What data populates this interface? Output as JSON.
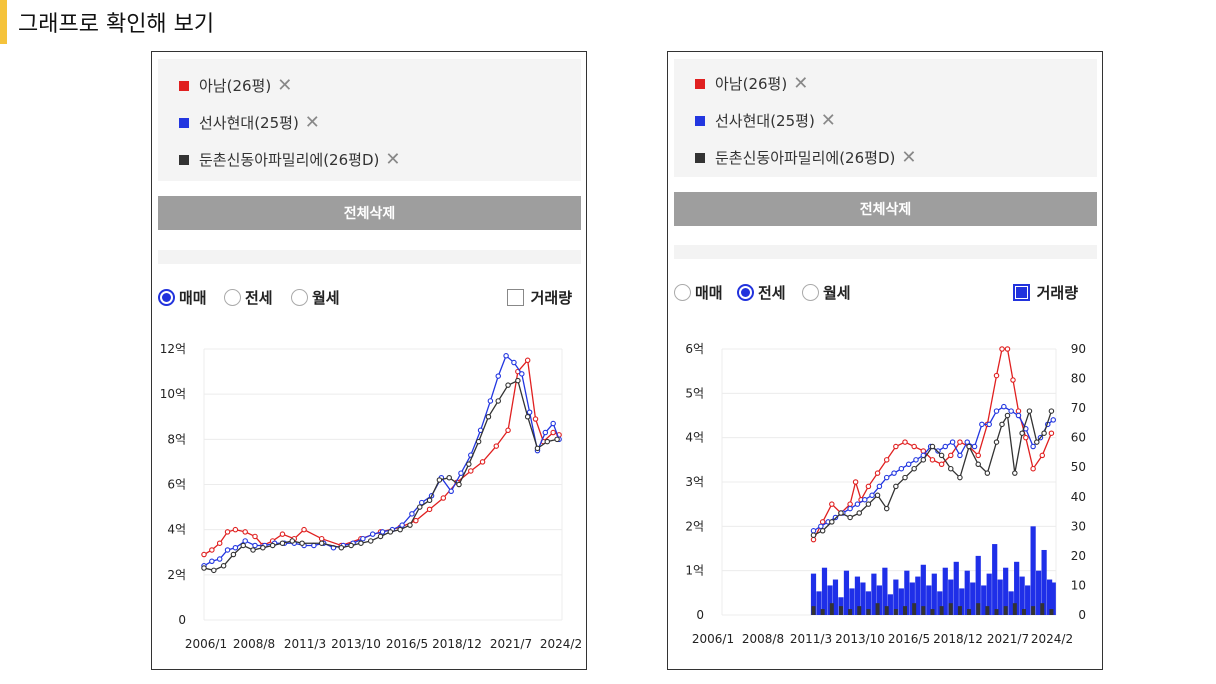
{
  "page_title": "그래프로 확인해 보기",
  "colors": {
    "red": "#e02020",
    "blue": "#2236e0",
    "black": "#333333",
    "accent": "#f5c33b",
    "button_bg": "#9e9e9e"
  },
  "panels": [
    {
      "selected": [
        {
          "label": "아남(26평)",
          "color": "#e02020",
          "remove": "✕"
        },
        {
          "label": "선사현대(25평)",
          "color": "#2236e0",
          "remove": "✕"
        },
        {
          "label": "둔촌신동아파밀리에(26평D)",
          "color": "#333333",
          "remove": "✕"
        }
      ],
      "clear_label": "전체삭제",
      "radios": [
        {
          "label": "매매",
          "checked": true
        },
        {
          "label": "전세",
          "checked": false
        },
        {
          "label": "월세",
          "checked": false
        }
      ],
      "volume": {
        "label": "거래량",
        "checked": false
      }
    },
    {
      "selected": [
        {
          "label": "아남(26평)",
          "color": "#e02020",
          "remove": "✕"
        },
        {
          "label": "선사현대(25평)",
          "color": "#2236e0",
          "remove": "✕"
        },
        {
          "label": "둔촌신동아파밀리에(26평D)",
          "color": "#333333",
          "remove": "✕"
        }
      ],
      "clear_label": "전체삭제",
      "radios": [
        {
          "label": "매매",
          "checked": false
        },
        {
          "label": "전세",
          "checked": true
        },
        {
          "label": "월세",
          "checked": false
        }
      ],
      "volume": {
        "label": "거래량",
        "checked": true
      }
    }
  ],
  "chart_data": [
    {
      "type": "line",
      "mode": "매매",
      "x_ticks": [
        "2006/1",
        "2008/8",
        "2011/3",
        "2013/10",
        "2016/5",
        "2018/12",
        "2021/7",
        "2024/2"
      ],
      "y_ticks": [
        "0",
        "2억",
        "4억",
        "6억",
        "8억",
        "10억",
        "12억"
      ],
      "ylim": [
        0,
        12
      ],
      "x_range": [
        2006.0,
        2024.25
      ],
      "grid": true,
      "series": [
        {
          "name": "아남(26평)",
          "color": "#e02020",
          "x": [
            2006.0,
            2006.4,
            2006.8,
            2007.2,
            2007.6,
            2008.1,
            2008.6,
            2009.0,
            2009.5,
            2010.0,
            2010.6,
            2011.1,
            2012.0,
            2013.0,
            2014.0,
            2015.0,
            2016.0,
            2016.8,
            2017.5,
            2018.2,
            2018.9,
            2019.6,
            2020.2,
            2020.9,
            2021.5,
            2022.0,
            2022.5,
            2022.9,
            2023.3,
            2023.8,
            2024.1
          ],
          "y": [
            2.9,
            3.1,
            3.4,
            3.9,
            4.0,
            3.9,
            3.7,
            3.3,
            3.5,
            3.8,
            3.6,
            4.0,
            3.6,
            3.3,
            3.6,
            3.9,
            4.1,
            4.4,
            4.9,
            5.4,
            6.1,
            6.6,
            7.0,
            7.7,
            8.4,
            11.0,
            11.5,
            8.9,
            7.9,
            8.3,
            8.2
          ]
        },
        {
          "name": "선사현대(25평)",
          "color": "#2236e0",
          "x": [
            2006.0,
            2006.4,
            2006.8,
            2007.2,
            2007.6,
            2008.1,
            2008.6,
            2009.1,
            2009.6,
            2010.1,
            2010.6,
            2011.1,
            2011.6,
            2012.1,
            2012.6,
            2013.1,
            2013.6,
            2014.1,
            2014.6,
            2015.1,
            2015.6,
            2016.1,
            2016.6,
            2017.1,
            2017.6,
            2018.1,
            2018.6,
            2019.1,
            2019.6,
            2020.1,
            2020.6,
            2021.0,
            2021.4,
            2021.8,
            2022.2,
            2022.6,
            2023.0,
            2023.4,
            2023.8,
            2024.1
          ],
          "y": [
            2.4,
            2.6,
            2.7,
            3.1,
            3.2,
            3.5,
            3.3,
            3.3,
            3.4,
            3.4,
            3.4,
            3.3,
            3.3,
            3.4,
            3.2,
            3.3,
            3.4,
            3.6,
            3.8,
            3.9,
            4.0,
            4.2,
            4.7,
            5.2,
            5.5,
            6.3,
            5.7,
            6.5,
            7.3,
            8.4,
            9.7,
            10.8,
            11.7,
            11.4,
            10.9,
            9.2,
            7.5,
            8.3,
            8.7,
            8.0
          ]
        },
        {
          "name": "둔촌신동아파밀리에(26평D)",
          "color": "#333333",
          "x": [
            2006.0,
            2006.5,
            2007.0,
            2007.5,
            2008.0,
            2008.5,
            2009.0,
            2009.5,
            2010.0,
            2010.5,
            2011.0,
            2012.0,
            2013.0,
            2013.5,
            2014.0,
            2014.5,
            2015.0,
            2015.5,
            2016.0,
            2016.5,
            2017.0,
            2017.5,
            2018.0,
            2018.5,
            2019.0,
            2019.5,
            2020.0,
            2020.5,
            2021.0,
            2021.5,
            2022.0,
            2022.5,
            2023.0,
            2023.5,
            2024.0
          ],
          "y": [
            2.3,
            2.2,
            2.4,
            2.9,
            3.3,
            3.1,
            3.2,
            3.3,
            3.4,
            3.5,
            3.4,
            3.4,
            3.2,
            3.3,
            3.4,
            3.5,
            3.7,
            3.9,
            4.0,
            4.2,
            5.0,
            5.3,
            6.2,
            6.3,
            6.0,
            6.9,
            7.9,
            9.0,
            9.7,
            10.4,
            10.6,
            9.0,
            7.6,
            7.9,
            8.0
          ]
        }
      ]
    },
    {
      "type": "line",
      "mode": "전세",
      "x_ticks": [
        "2006/1",
        "2008/8",
        "2011/3",
        "2013/10",
        "2016/5",
        "2018/12",
        "2021/7",
        "2024/2"
      ],
      "y_ticks": [
        "0",
        "1억",
        "2억",
        "3억",
        "4억",
        "5억",
        "6억"
      ],
      "y2_ticks": [
        "0",
        "10",
        "20",
        "30",
        "40",
        "50",
        "60",
        "70",
        "80",
        "90"
      ],
      "ylim": [
        0,
        6
      ],
      "y2lim": [
        0,
        90
      ],
      "x_range": [
        2006.0,
        2024.25
      ],
      "grid": true,
      "series": [
        {
          "name": "아남(26평)",
          "color": "#e02020",
          "x": [
            2011.0,
            2011.5,
            2012.0,
            2012.5,
            2013.0,
            2013.3,
            2013.6,
            2014.0,
            2014.5,
            2015.0,
            2015.5,
            2016.0,
            2016.5,
            2017.0,
            2017.5,
            2018.0,
            2018.5,
            2019.0,
            2019.5,
            2020.0,
            2020.5,
            2021.0,
            2021.3,
            2021.6,
            2021.9,
            2022.2,
            2022.6,
            2023.0,
            2023.5,
            2024.0
          ],
          "y": [
            1.7,
            2.1,
            2.5,
            2.3,
            2.5,
            3.0,
            2.6,
            2.9,
            3.2,
            3.5,
            3.8,
            3.9,
            3.8,
            3.7,
            3.5,
            3.4,
            3.6,
            3.9,
            3.8,
            3.6,
            4.3,
            5.4,
            6.0,
            6.0,
            5.3,
            4.6,
            4.0,
            3.3,
            3.6,
            4.1
          ]
        },
        {
          "name": "선사현대(25평)",
          "color": "#2236e0",
          "x": [
            2011.0,
            2011.4,
            2011.8,
            2012.2,
            2012.6,
            2013.0,
            2013.4,
            2013.8,
            2014.2,
            2014.6,
            2015.0,
            2015.4,
            2015.8,
            2016.2,
            2016.6,
            2017.0,
            2017.4,
            2017.8,
            2018.2,
            2018.6,
            2019.0,
            2019.4,
            2019.8,
            2020.2,
            2020.6,
            2021.0,
            2021.4,
            2021.8,
            2022.2,
            2022.6,
            2023.0,
            2023.4,
            2023.8,
            2024.1
          ],
          "y": [
            1.9,
            2.0,
            2.1,
            2.2,
            2.3,
            2.4,
            2.5,
            2.6,
            2.7,
            2.9,
            3.1,
            3.2,
            3.3,
            3.4,
            3.5,
            3.6,
            3.8,
            3.7,
            3.8,
            3.9,
            3.6,
            3.9,
            3.8,
            4.3,
            4.3,
            4.6,
            4.7,
            4.6,
            4.5,
            4.2,
            3.8,
            4.0,
            4.3,
            4.4
          ]
        },
        {
          "name": "둔촌신동아파밀리에(26평D)",
          "color": "#333333",
          "x": [
            2011.0,
            2011.5,
            2012.0,
            2012.5,
            2013.0,
            2013.5,
            2014.0,
            2014.5,
            2015.0,
            2015.5,
            2016.0,
            2016.5,
            2017.0,
            2017.5,
            2018.0,
            2018.5,
            2019.0,
            2019.5,
            2020.0,
            2020.5,
            2021.0,
            2021.3,
            2021.6,
            2022.0,
            2022.4,
            2022.8,
            2023.2,
            2023.6,
            2024.0
          ],
          "y": [
            1.8,
            1.9,
            2.1,
            2.3,
            2.2,
            2.3,
            2.5,
            2.7,
            2.4,
            2.9,
            3.1,
            3.3,
            3.5,
            3.8,
            3.6,
            3.3,
            3.1,
            3.8,
            3.4,
            3.2,
            3.9,
            4.3,
            4.5,
            3.2,
            4.1,
            4.6,
            3.9,
            4.1,
            4.6
          ]
        }
      ],
      "volume": {
        "blue_x": [
          2011.0,
          2011.3,
          2011.6,
          2011.9,
          2012.2,
          2012.5,
          2012.8,
          2013.1,
          2013.4,
          2013.7,
          2014.0,
          2014.3,
          2014.6,
          2014.9,
          2015.2,
          2015.5,
          2015.8,
          2016.1,
          2016.4,
          2016.7,
          2017.0,
          2017.3,
          2017.6,
          2017.9,
          2018.2,
          2018.5,
          2018.8,
          2019.1,
          2019.4,
          2019.7,
          2020.0,
          2020.3,
          2020.6,
          2020.9,
          2021.2,
          2021.5,
          2021.8,
          2022.1,
          2022.4,
          2022.7,
          2023.0,
          2023.3,
          2023.6,
          2023.9,
          2024.1
        ],
        "blue_v": [
          14,
          8,
          16,
          10,
          12,
          6,
          15,
          9,
          13,
          11,
          8,
          14,
          10,
          16,
          7,
          12,
          9,
          15,
          11,
          13,
          17,
          10,
          14,
          8,
          16,
          12,
          18,
          9,
          15,
          11,
          20,
          10,
          14,
          24,
          12,
          16,
          8,
          18,
          13,
          10,
          30,
          15,
          22,
          12,
          11
        ],
        "black_x": [
          2011.0,
          2011.5,
          2012.0,
          2012.5,
          2013.0,
          2013.5,
          2014.0,
          2014.5,
          2015.0,
          2015.5,
          2016.0,
          2016.5,
          2017.0,
          2017.5,
          2018.0,
          2018.5,
          2019.0,
          2019.5,
          2020.0,
          2020.5,
          2021.0,
          2021.5,
          2022.0,
          2022.5,
          2023.0,
          2023.5,
          2024.0
        ],
        "black_v": [
          3,
          2,
          4,
          3,
          2,
          3,
          2,
          4,
          3,
          2,
          3,
          4,
          3,
          2,
          3,
          4,
          3,
          2,
          4,
          3,
          2,
          3,
          4,
          2,
          3,
          4,
          2
        ]
      }
    }
  ]
}
